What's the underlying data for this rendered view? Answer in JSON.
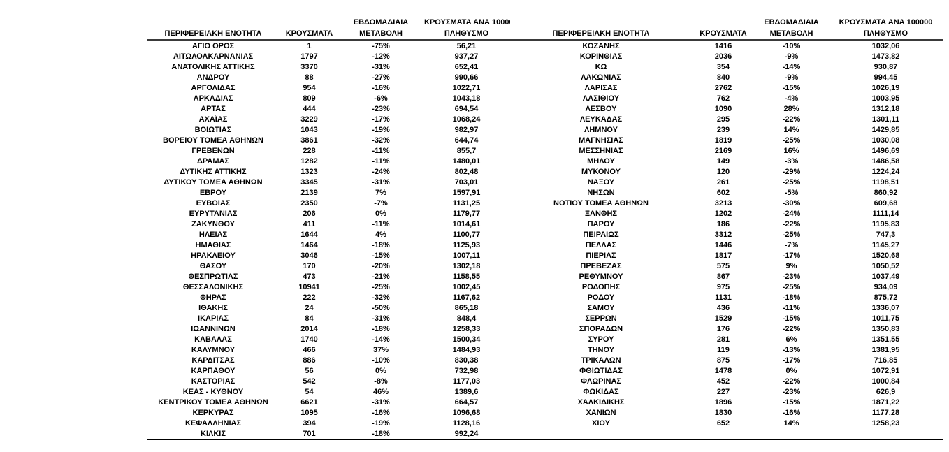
{
  "table": {
    "headers": {
      "region": "ΠΕΡΙΦΕΡΕΙΑΚΗ ΕΝΟΤΗΤΑ",
      "cases": "ΚΡΟΥΣΜΑΤΑ",
      "weekly_line1": "ΕΒΔΟΜΑΔΙΑΙΑ",
      "weekly_line2": "ΜΕΤΑΒΟΛΗ",
      "per100k_line1": "ΚΡΟΥΣΜΑΤΑ ΑΝΑ 100000",
      "per100k_line2": "ΠΛΗΘΥΣΜΟ"
    },
    "left_rows": [
      [
        "ΑΓΙΟ ΟΡΟΣ",
        "1",
        "-75%",
        "56,21"
      ],
      [
        "ΑΙΤΩΛΟΑΚΑΡΝΑΝΙΑΣ",
        "1797",
        "-12%",
        "937,27"
      ],
      [
        "ΑΝΑΤΟΛΙΚΗΣ ΑΤΤΙΚΗΣ",
        "3370",
        "-31%",
        "652,41"
      ],
      [
        "ΑΝΔΡΟΥ",
        "88",
        "-27%",
        "990,66"
      ],
      [
        "ΑΡΓΟΛΙΔΑΣ",
        "954",
        "-16%",
        "1022,71"
      ],
      [
        "ΑΡΚΑΔΙΑΣ",
        "809",
        "-6%",
        "1043,18"
      ],
      [
        "ΑΡΤΑΣ",
        "444",
        "-23%",
        "694,54"
      ],
      [
        "ΑΧΑΪΑΣ",
        "3229",
        "-17%",
        "1068,24"
      ],
      [
        "ΒΟΙΩΤΙΑΣ",
        "1043",
        "-19%",
        "982,97"
      ],
      [
        "ΒΟΡΕΙΟΥ ΤΟΜΕΑ ΑΘΗΝΩΝ",
        "3861",
        "-32%",
        "644,74"
      ],
      [
        "ΓΡΕΒΕΝΩΝ",
        "228",
        "-11%",
        "855,7"
      ],
      [
        "ΔΡΑΜΑΣ",
        "1282",
        "-11%",
        "1480,01"
      ],
      [
        "ΔΥΤΙΚΗΣ ΑΤΤΙΚΗΣ",
        "1323",
        "-24%",
        "802,48"
      ],
      [
        "ΔΥΤΙΚΟΥ ΤΟΜΕΑ ΑΘΗΝΩΝ",
        "3345",
        "-31%",
        "703,01"
      ],
      [
        "ΕΒΡΟΥ",
        "2139",
        "7%",
        "1597,91"
      ],
      [
        "ΕΥΒΟΙΑΣ",
        "2350",
        "-7%",
        "1131,25"
      ],
      [
        "ΕΥΡΥΤΑΝΙΑΣ",
        "206",
        "0%",
        "1179,77"
      ],
      [
        "ΖΑΚΥΝΘΟΥ",
        "411",
        "-11%",
        "1014,61"
      ],
      [
        "ΗΛΕΙΑΣ",
        "1644",
        "4%",
        "1100,77"
      ],
      [
        "ΗΜΑΘΙΑΣ",
        "1464",
        "-18%",
        "1125,93"
      ],
      [
        "ΗΡΑΚΛΕΙΟΥ",
        "3046",
        "-15%",
        "1007,11"
      ],
      [
        "ΘΑΣΟΥ",
        "170",
        "-20%",
        "1302,18"
      ],
      [
        "ΘΕΣΠΡΩΤΙΑΣ",
        "473",
        "-21%",
        "1158,55"
      ],
      [
        "ΘΕΣΣΑΛΟΝΙΚΗΣ",
        "10941",
        "-25%",
        "1002,45"
      ],
      [
        "ΘΗΡΑΣ",
        "222",
        "-32%",
        "1167,62"
      ],
      [
        "ΙΘΑΚΗΣ",
        "24",
        "-50%",
        "865,18"
      ],
      [
        "ΙΚΑΡΙΑΣ",
        "84",
        "-31%",
        "848,4"
      ],
      [
        "ΙΩΑΝΝΙΝΩΝ",
        "2014",
        "-18%",
        "1258,33"
      ],
      [
        "ΚΑΒΑΛΑΣ",
        "1740",
        "-14%",
        "1500,34"
      ],
      [
        "ΚΑΛΥΜΝΟΥ",
        "466",
        "37%",
        "1484,93"
      ],
      [
        "ΚΑΡΔΙΤΣΑΣ",
        "886",
        "-10%",
        "830,38"
      ],
      [
        "ΚΑΡΠΑΘΟΥ",
        "56",
        "0%",
        "732,98"
      ],
      [
        "ΚΑΣΤΟΡΙΑΣ",
        "542",
        "-8%",
        "1177,03"
      ],
      [
        "ΚΕΑΣ - ΚΥΘΝΟΥ",
        "54",
        "46%",
        "1389,6"
      ],
      [
        "ΚΕΝΤΡΙΚΟΥ ΤΟΜΕΑ ΑΘΗΝΩΝ",
        "6621",
        "-31%",
        "664,57"
      ],
      [
        "ΚΕΡΚΥΡΑΣ",
        "1095",
        "-16%",
        "1096,68"
      ],
      [
        "ΚΕΦΑΛΛΗΝΙΑΣ",
        "394",
        "-19%",
        "1128,16"
      ],
      [
        "ΚΙΛΚΙΣ",
        "701",
        "-18%",
        "992,24"
      ]
    ],
    "right_rows": [
      [
        "ΚΟΖΑΝΗΣ",
        "1416",
        "-10%",
        "1032,06"
      ],
      [
        "ΚΟΡΙΝΘΙΑΣ",
        "2036",
        "-9%",
        "1473,82"
      ],
      [
        "ΚΩ",
        "354",
        "-14%",
        "930,87"
      ],
      [
        "ΛΑΚΩΝΙΑΣ",
        "840",
        "-9%",
        "994,45"
      ],
      [
        "ΛΑΡΙΣΑΣ",
        "2762",
        "-15%",
        "1026,19"
      ],
      [
        "ΛΑΣΙΘΙΟΥ",
        "762",
        "-4%",
        "1003,95"
      ],
      [
        "ΛΕΣΒΟΥ",
        "1090",
        "28%",
        "1312,18"
      ],
      [
        "ΛΕΥΚΑΔΑΣ",
        "295",
        "-22%",
        "1301,11"
      ],
      [
        "ΛΗΜΝΟΥ",
        "239",
        "14%",
        "1429,85"
      ],
      [
        "ΜΑΓΝΗΣΙΑΣ",
        "1819",
        "-25%",
        "1030,08"
      ],
      [
        "ΜΕΣΣΗΝΙΑΣ",
        "2169",
        "16%",
        "1496,69"
      ],
      [
        "ΜΗΛΟΥ",
        "149",
        "-3%",
        "1486,58"
      ],
      [
        "ΜΥΚΟΝΟΥ",
        "120",
        "-29%",
        "1224,24"
      ],
      [
        "ΝΑΞΟΥ",
        "261",
        "-25%",
        "1198,51"
      ],
      [
        "ΝΗΣΩΝ",
        "602",
        "-5%",
        "860,92"
      ],
      [
        "ΝΟΤΙΟΥ ΤΟΜΕΑ ΑΘΗΝΩΝ",
        "3213",
        "-30%",
        "609,68"
      ],
      [
        "ΞΑΝΘΗΣ",
        "1202",
        "-24%",
        "1111,14"
      ],
      [
        "ΠΑΡΟΥ",
        "186",
        "-22%",
        "1195,83"
      ],
      [
        "ΠΕΙΡΑΙΩΣ",
        "3312",
        "-25%",
        "747,3"
      ],
      [
        "ΠΕΛΛΑΣ",
        "1446",
        "-7%",
        "1145,27"
      ],
      [
        "ΠΙΕΡΙΑΣ",
        "1817",
        "-17%",
        "1520,68"
      ],
      [
        "ΠΡΕΒΕΖΑΣ",
        "575",
        "9%",
        "1050,52"
      ],
      [
        "ΡΕΘΥΜΝΟΥ",
        "867",
        "-23%",
        "1037,49"
      ],
      [
        "ΡΟΔΟΠΗΣ",
        "975",
        "-25%",
        "934,09"
      ],
      [
        "ΡΟΔΟΥ",
        "1131",
        "-18%",
        "875,72"
      ],
      [
        "ΣΑΜΟΥ",
        "436",
        "-11%",
        "1336,07"
      ],
      [
        "ΣΕΡΡΩΝ",
        "1529",
        "-15%",
        "1011,75"
      ],
      [
        "ΣΠΟΡΑΔΩΝ",
        "176",
        "-22%",
        "1350,83"
      ],
      [
        "ΣΥΡΟΥ",
        "281",
        "6%",
        "1351,55"
      ],
      [
        "ΤΗΝΟΥ",
        "119",
        "-13%",
        "1381,95"
      ],
      [
        "ΤΡΙΚΑΛΩΝ",
        "875",
        "-17%",
        "716,85"
      ],
      [
        "ΦΘΙΩΤΙΔΑΣ",
        "1478",
        "0%",
        "1072,91"
      ],
      [
        "ΦΛΩΡΙΝΑΣ",
        "452",
        "-22%",
        "1000,84"
      ],
      [
        "ΦΩΚΙΔΑΣ",
        "227",
        "-23%",
        "626,9"
      ],
      [
        "ΧΑΛΚΙΔΙΚΗΣ",
        "1896",
        "-15%",
        "1871,22"
      ],
      [
        "ΧΑΝΙΩΝ",
        "1830",
        "-16%",
        "1177,28"
      ],
      [
        "ΧΙΟΥ",
        "652",
        "14%",
        "1258,23"
      ]
    ]
  }
}
